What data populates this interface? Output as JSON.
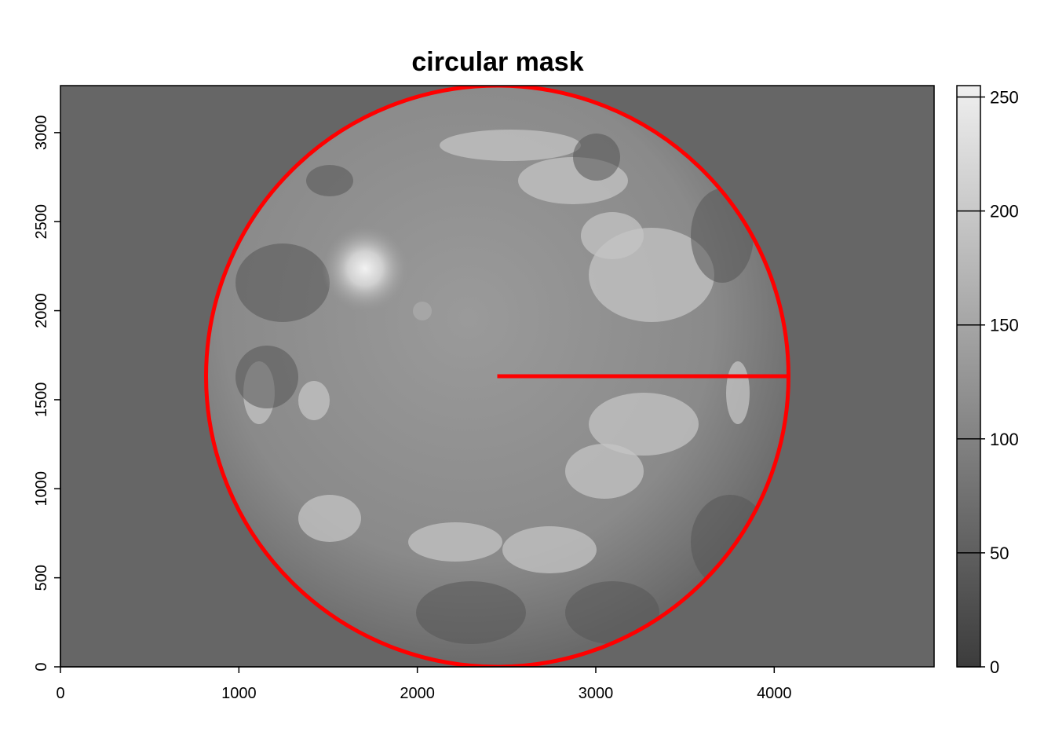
{
  "chart_data": {
    "type": "heatmap",
    "title": "circular mask",
    "xlabel": "",
    "ylabel": "",
    "x_range": [
      0,
      4896
    ],
    "y_range": [
      0,
      3264
    ],
    "x_ticks": [
      0,
      1000,
      2000,
      3000,
      4000
    ],
    "y_ticks": [
      0,
      500,
      1000,
      1500,
      2000,
      2500,
      3000
    ],
    "colorbar": {
      "range": [
        0,
        255
      ],
      "ticks": [
        0,
        50,
        100,
        150,
        200,
        250
      ],
      "palette": "grayscale"
    },
    "mask_circle": {
      "center_x": 2448,
      "center_y": 1632,
      "radius": 1632,
      "color": "#ff0000"
    },
    "radius_line": {
      "x_start": 2448,
      "x_end": 4080,
      "y": 1632,
      "color": "#ff0000"
    },
    "image_description_values": {
      "background_value": 60,
      "sky_center_value": 140
    }
  }
}
